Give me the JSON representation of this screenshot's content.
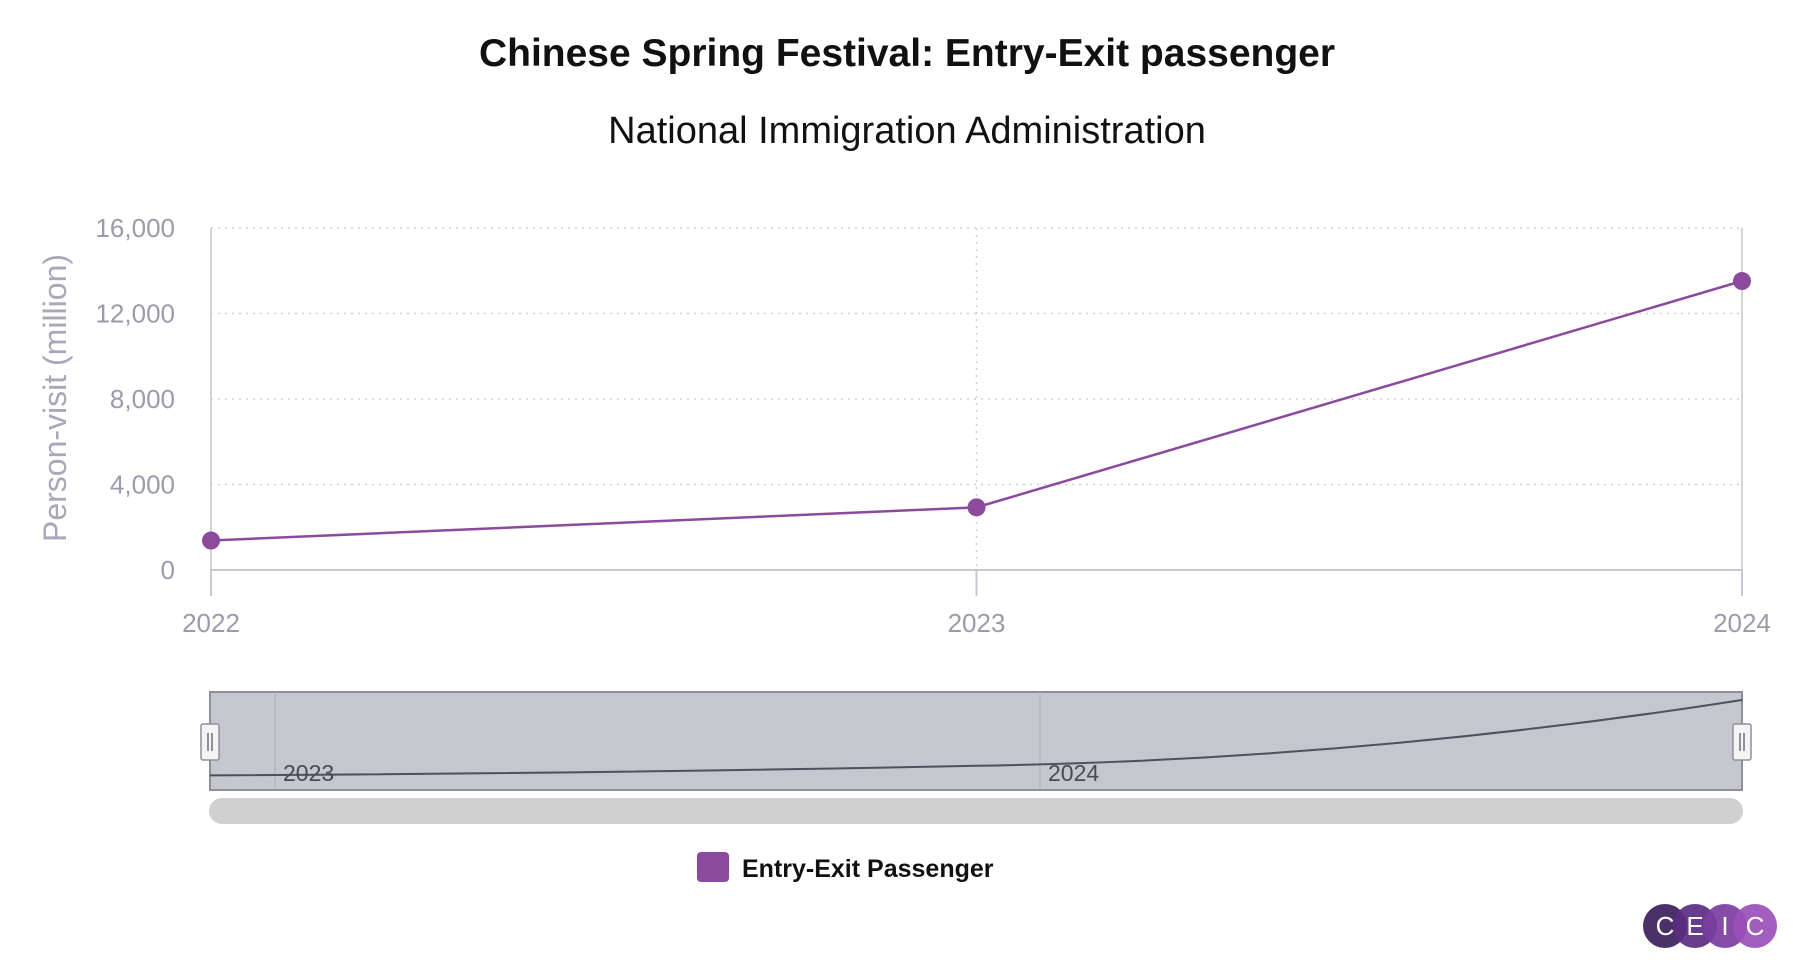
{
  "chart_data": {
    "type": "line",
    "title": "Chinese Spring Festival: Entry-Exit passenger",
    "subtitle": "National Immigration Administration",
    "ylabel": "Person-visit (million)",
    "xlabel": "",
    "x": [
      "2022",
      "2023",
      "2024"
    ],
    "ylim": [
      0,
      16000
    ],
    "yticks": [
      "0",
      "4,000",
      "8,000",
      "12,000",
      "16,000"
    ],
    "ytick_values": [
      0,
      4000,
      8000,
      12000,
      16000
    ],
    "grid": true,
    "legend_placement": "bottom-center",
    "series": [
      {
        "name": "Entry-Exit Passenger",
        "color": "#8b4a9c",
        "values": [
          1380,
          2930,
          13520
        ]
      }
    ],
    "navigator": {
      "labels": [
        "2023",
        "2024"
      ]
    }
  },
  "logo": {
    "letters": [
      "C",
      "E",
      "I",
      "C"
    ],
    "colors": [
      "#3d1f5c",
      "#5b2d82",
      "#7a3d9e",
      "#9b4fb8"
    ]
  }
}
